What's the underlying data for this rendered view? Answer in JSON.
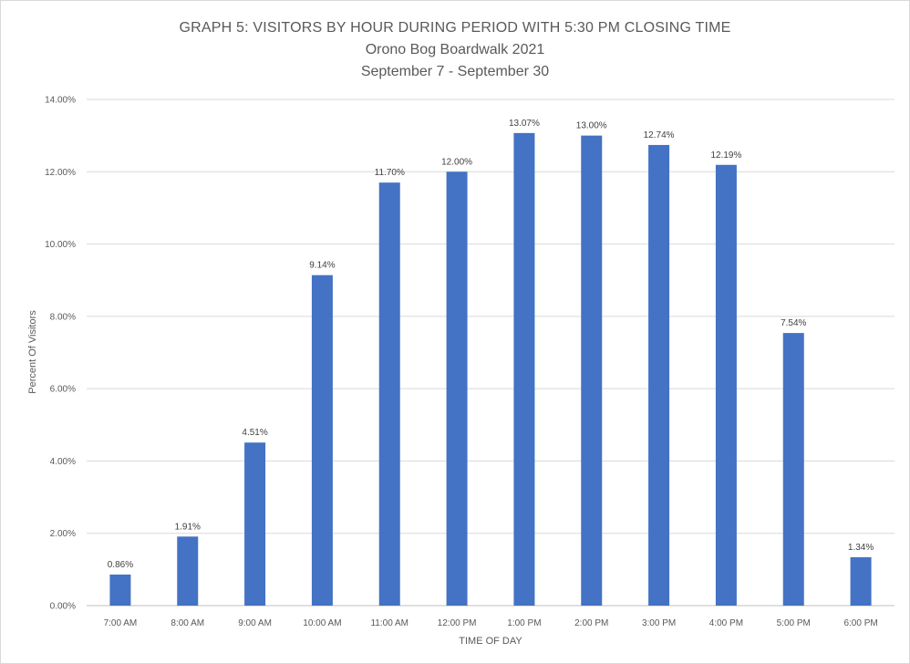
{
  "chart_data": {
    "type": "bar",
    "title": "GRAPH 5: VISITORS BY HOUR DURING PERIOD WITH 5:30 PM CLOSING TIME",
    "subtitle": [
      "Orono Bog Boardwalk 2021",
      "September 7 - September 30"
    ],
    "xlabel": "TIME OF DAY",
    "ylabel": "Percent Of Visitors",
    "categories": [
      "7:00 AM",
      "8:00 AM",
      "9:00 AM",
      "10:00 AM",
      "11:00 AM",
      "12:00 PM",
      "1:00 PM",
      "2:00 PM",
      "3:00 PM",
      "4:00 PM",
      "5:00 PM",
      "6:00 PM"
    ],
    "values": [
      0.86,
      1.91,
      4.51,
      9.14,
      11.7,
      12.0,
      13.07,
      13.0,
      12.74,
      12.19,
      7.54,
      1.34
    ],
    "data_labels": [
      "0.86%",
      "1.91%",
      "4.51%",
      "9.14%",
      "11.70%",
      "12.00%",
      "13.07%",
      "13.00%",
      "12.74%",
      "12.19%",
      "7.54%",
      "1.34%"
    ],
    "ylim": [
      0,
      14
    ],
    "yticks": [
      "0.00%",
      "2.00%",
      "4.00%",
      "6.00%",
      "8.00%",
      "10.00%",
      "12.00%",
      "14.00%"
    ],
    "grid": true,
    "bar_color": "#4472c4"
  }
}
